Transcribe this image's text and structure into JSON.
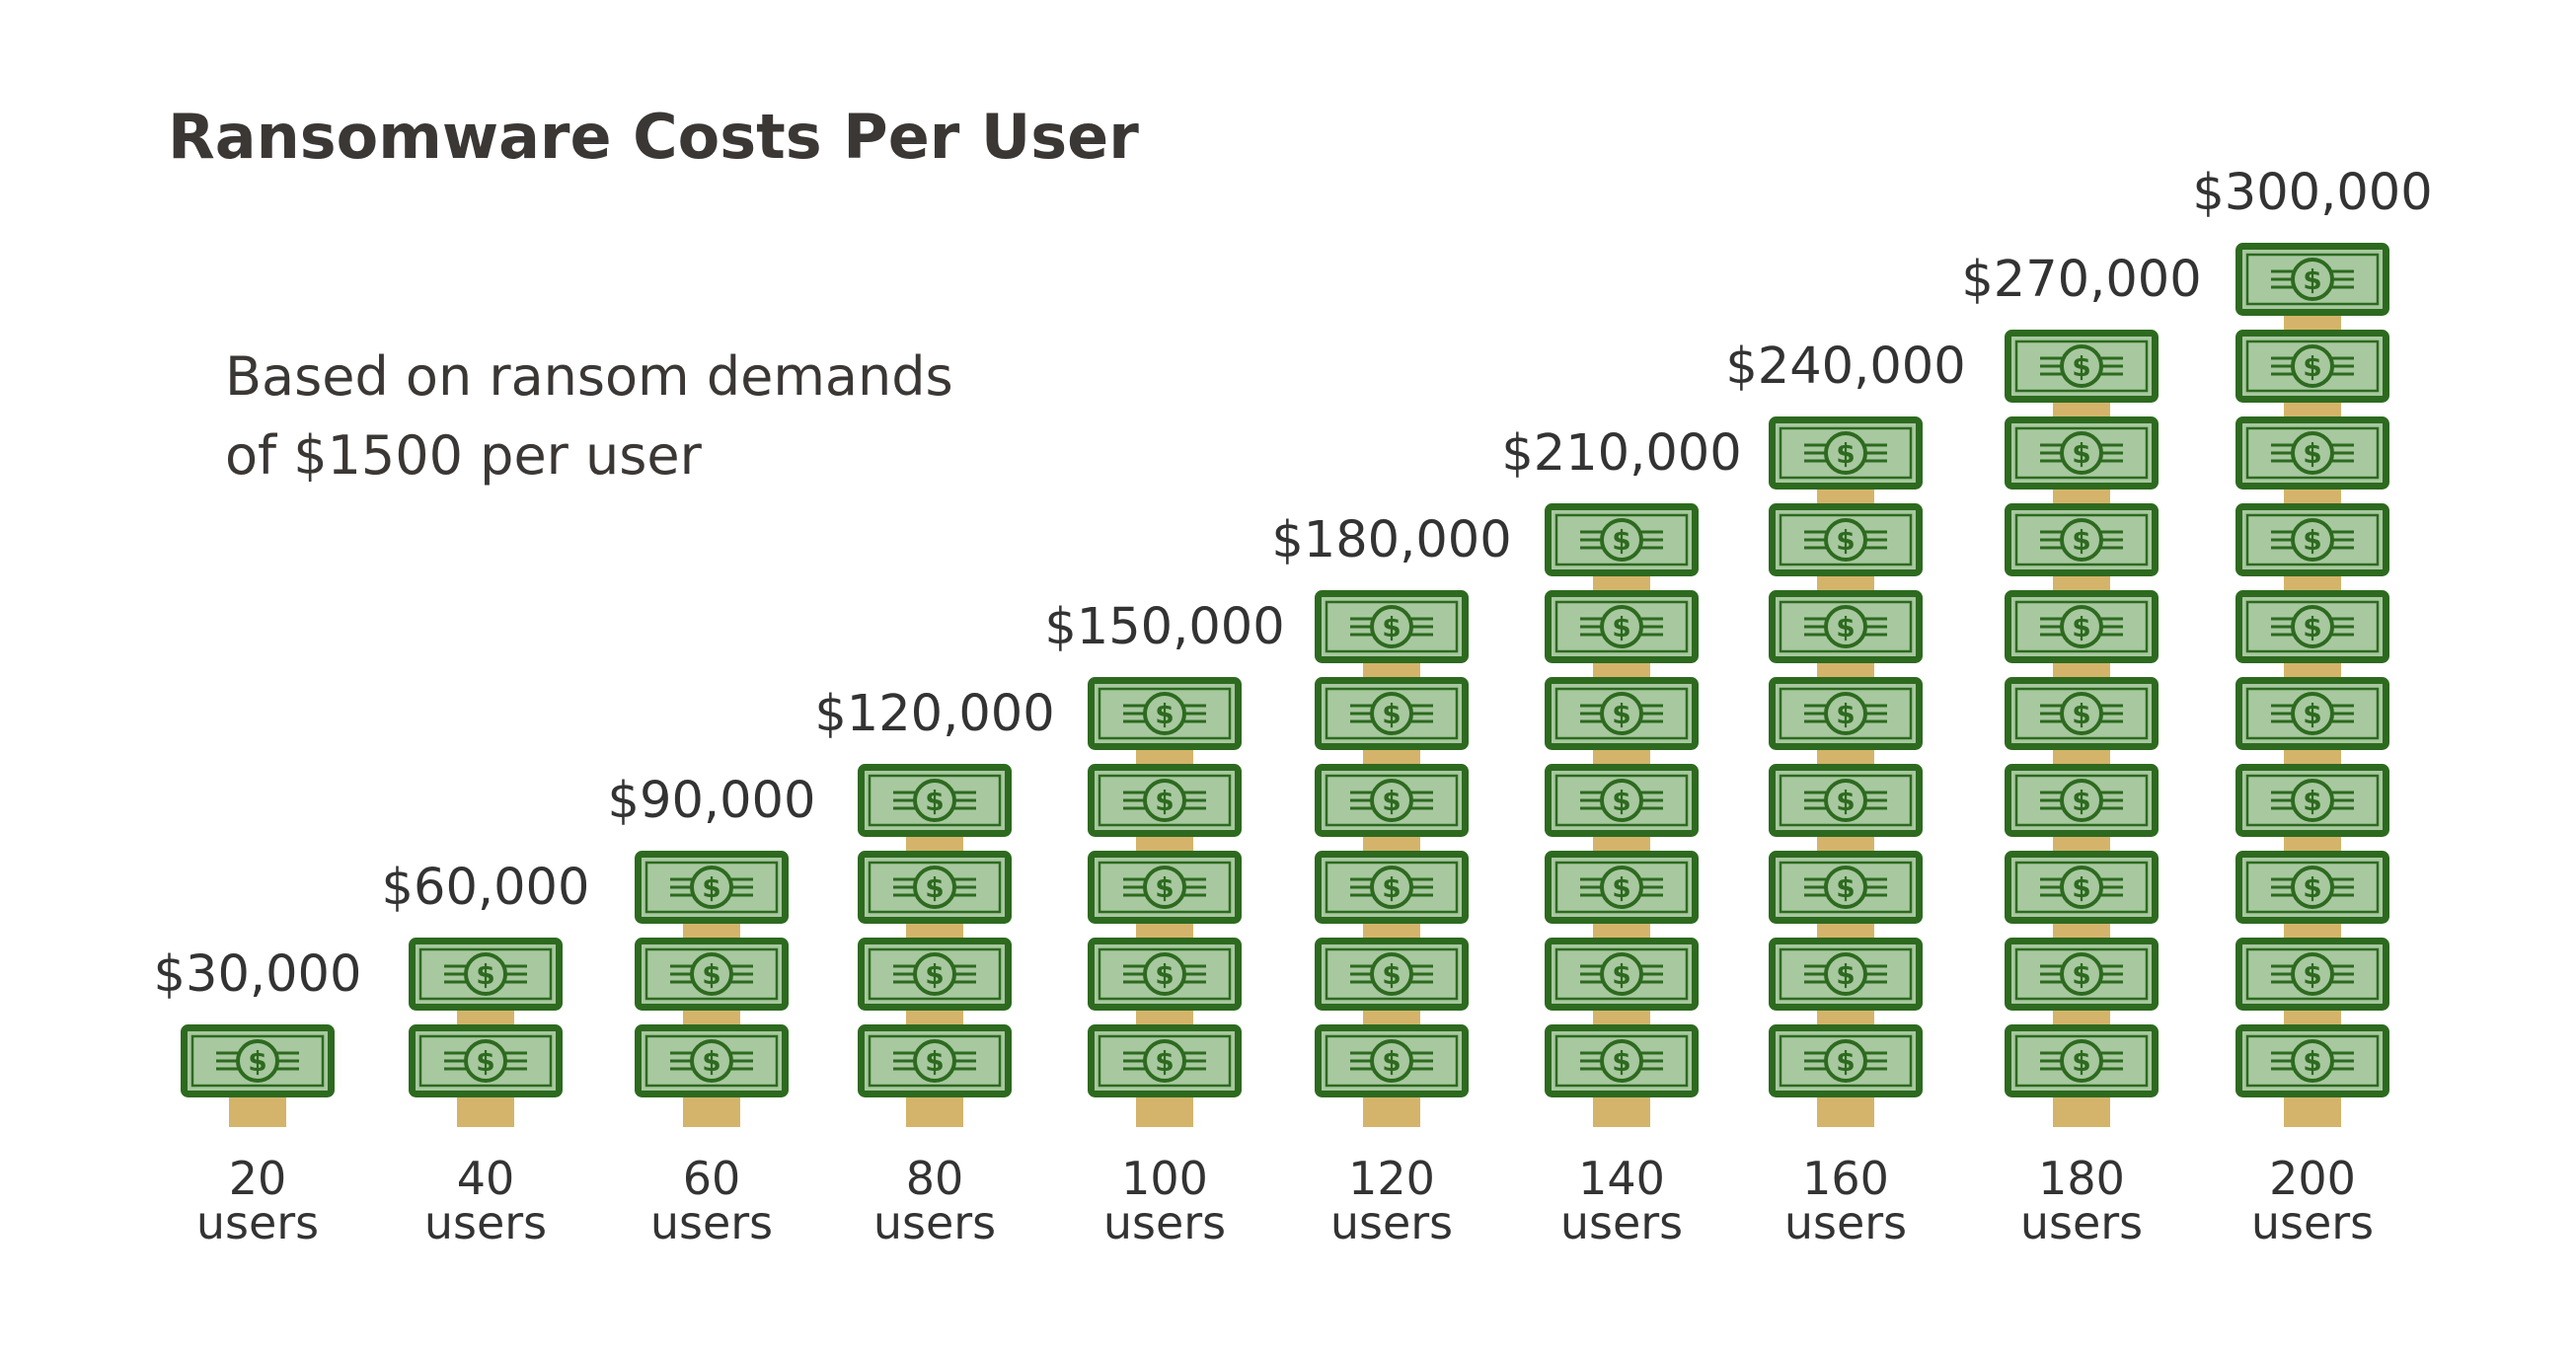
{
  "colors": {
    "bill_border": "#2d6a1f",
    "bill_fill": "#a8c8a0",
    "band": "#d4b46a",
    "text": "#333333",
    "title": "#3a3735"
  },
  "icon": "dollar-bill-icon",
  "chart_data": {
    "type": "bar",
    "title": "Ransomware Costs Per User",
    "subtitle_lines": [
      "Based on ransom demands",
      "of $1500 per user"
    ],
    "categories": [
      "20 users",
      "40 users",
      "60 users",
      "80 users",
      "100 users",
      "120 users",
      "140 users",
      "160 users",
      "180 users",
      "200 users"
    ],
    "category_lines": [
      [
        "20",
        "users"
      ],
      [
        "40",
        "users"
      ],
      [
        "60",
        "users"
      ],
      [
        "80",
        "users"
      ],
      [
        "100",
        "users"
      ],
      [
        "120",
        "users"
      ],
      [
        "140",
        "users"
      ],
      [
        "160",
        "users"
      ],
      [
        "180",
        "users"
      ],
      [
        "200",
        "users"
      ]
    ],
    "values": [
      30000,
      60000,
      90000,
      120000,
      150000,
      180000,
      210000,
      240000,
      270000,
      300000
    ],
    "value_labels": [
      "$30,000",
      "$60,000",
      "$90,000",
      "$120,000",
      "$150,000",
      "$180,000",
      "$210,000",
      "$240,000",
      "$270,000",
      "$300,000"
    ],
    "unit_per_bill": 30000,
    "grid": false,
    "legend": "none"
  }
}
